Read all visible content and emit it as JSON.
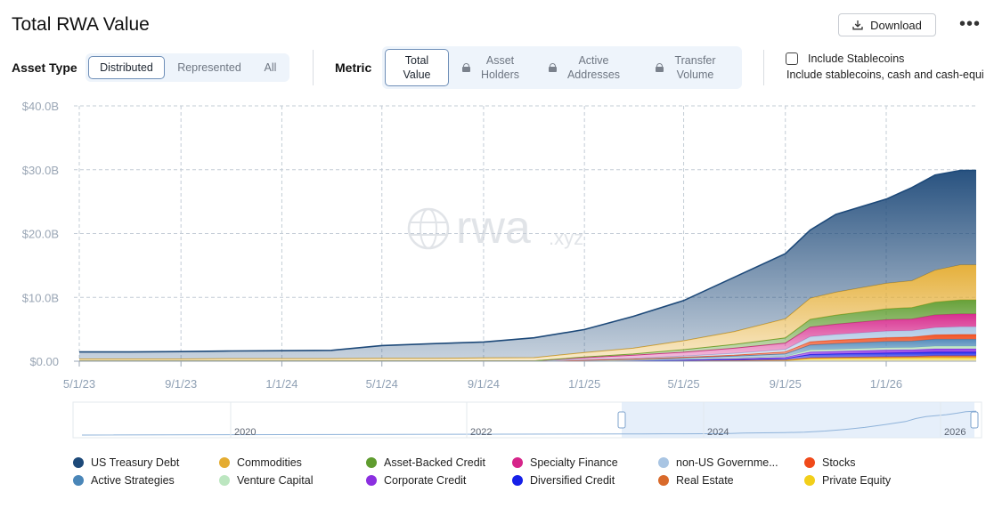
{
  "page": {
    "title": "Total RWA Value"
  },
  "toolbar": {
    "download_label": "Download",
    "more_label": "•••"
  },
  "asset_type": {
    "label": "Asset Type",
    "options": [
      "Distributed",
      "Represented",
      "All"
    ],
    "selected": "Distributed"
  },
  "metric": {
    "label": "Metric",
    "options": [
      {
        "line1": "Total",
        "line2": "Value",
        "locked": false,
        "active": true
      },
      {
        "line1": "Asset",
        "line2": "Holders",
        "locked": true,
        "active": false
      },
      {
        "line1": "Active",
        "line2": "Addresses",
        "locked": true,
        "active": false
      },
      {
        "line1": "Transfer",
        "line2": "Volume",
        "locked": true,
        "active": false
      }
    ]
  },
  "stablecoins": {
    "label": "Include Stablecoins",
    "sublabel": "Include stablecoins, cash and cash-equi",
    "checked": false
  },
  "watermark": {
    "text": "rwa",
    "suffix": ".xyz"
  },
  "navigator": {
    "year_labels": [
      "2020",
      "2022",
      "2024",
      "2026"
    ]
  },
  "chart_data": {
    "type": "area",
    "title": "Total RWA Value",
    "xlabel": "",
    "ylabel": "",
    "stacked": true,
    "x_ticks": [
      "5/1/23",
      "9/1/23",
      "1/1/24",
      "5/1/24",
      "9/1/24",
      "1/1/25",
      "5/1/25",
      "9/1/25",
      "1/1/26"
    ],
    "y_ticks": [
      "$0.00",
      "$10.0B",
      "$20.0B",
      "$30.0B",
      "$40.0B"
    ],
    "ylim": [
      0,
      40
    ],
    "y_unit": "B USD",
    "grid": true,
    "x": [
      "5/1/23",
      "7/1/23",
      "9/1/23",
      "11/1/23",
      "1/1/24",
      "3/1/24",
      "5/1/24",
      "7/1/24",
      "9/1/24",
      "11/1/24",
      "1/1/25",
      "3/1/25",
      "5/1/25",
      "7/1/25",
      "9/1/25",
      "10/1/25",
      "11/1/25",
      "1/1/26",
      "2/1/26",
      "3/1/26",
      "4/1/26"
    ],
    "series": [
      {
        "name": "Private Equity",
        "color": "#f2cf1a",
        "values": [
          0,
          0,
          0,
          0,
          0,
          0,
          0,
          0,
          0,
          0,
          0,
          0.02,
          0.03,
          0.05,
          0.1,
          0.4,
          0.45,
          0.5,
          0.55,
          0.6,
          0.6
        ]
      },
      {
        "name": "Real Estate",
        "color": "#d96a2b",
        "values": [
          0.05,
          0.05,
          0.05,
          0.05,
          0.05,
          0.05,
          0.05,
          0.05,
          0.06,
          0.06,
          0.06,
          0.07,
          0.08,
          0.09,
          0.1,
          0.15,
          0.15,
          0.2,
          0.2,
          0.25,
          0.25
        ]
      },
      {
        "name": "Diversified Credit",
        "color": "#1620e8",
        "values": [
          0,
          0,
          0,
          0,
          0,
          0,
          0,
          0,
          0,
          0,
          0,
          0.02,
          0.05,
          0.1,
          0.2,
          0.5,
          0.55,
          0.6,
          0.6,
          0.6,
          0.6
        ]
      },
      {
        "name": "Corporate Credit",
        "color": "#8b2fe0",
        "values": [
          0,
          0,
          0,
          0,
          0,
          0,
          0,
          0,
          0,
          0,
          0.02,
          0.05,
          0.1,
          0.15,
          0.2,
          0.4,
          0.4,
          0.45,
          0.45,
          0.5,
          0.5
        ]
      },
      {
        "name": "Venture Capital",
        "color": "#bce6c0",
        "values": [
          0,
          0,
          0,
          0,
          0,
          0,
          0,
          0,
          0,
          0,
          0.01,
          0.02,
          0.05,
          0.1,
          0.15,
          0.3,
          0.3,
          0.35,
          0.35,
          0.4,
          0.4
        ]
      },
      {
        "name": "Active Strategies",
        "color": "#4a86b8",
        "values": [
          0,
          0,
          0,
          0,
          0,
          0,
          0,
          0,
          0,
          0,
          0.05,
          0.1,
          0.2,
          0.3,
          0.4,
          0.8,
          0.9,
          1.0,
          1.0,
          1.1,
          1.1
        ]
      },
      {
        "name": "Stocks",
        "color": "#f04a1a",
        "values": [
          0,
          0,
          0,
          0,
          0,
          0,
          0,
          0,
          0,
          0,
          0.02,
          0.05,
          0.1,
          0.15,
          0.3,
          0.5,
          0.55,
          0.6,
          0.65,
          0.7,
          0.75
        ]
      },
      {
        "name": "non-US Government Debt",
        "color": "#a9c5e3",
        "values": [
          0,
          0,
          0,
          0,
          0,
          0,
          0,
          0,
          0,
          0,
          0.1,
          0.15,
          0.2,
          0.3,
          0.4,
          0.8,
          0.9,
          1.0,
          1.0,
          1.1,
          1.2
        ]
      },
      {
        "name": "Specialty Finance",
        "color": "#d6258a",
        "values": [
          0,
          0,
          0,
          0,
          0,
          0,
          0,
          0,
          0,
          0,
          0.3,
          0.45,
          0.6,
          0.8,
          1.0,
          1.5,
          1.6,
          1.8,
          1.8,
          2.0,
          2.0
        ]
      },
      {
        "name": "Asset-Backed Credit",
        "color": "#5f9c2f",
        "values": [
          0,
          0,
          0,
          0,
          0,
          0,
          0,
          0,
          0,
          0,
          0.1,
          0.2,
          0.4,
          0.6,
          0.8,
          1.2,
          1.4,
          1.7,
          1.8,
          2.0,
          2.2
        ]
      },
      {
        "name": "Commodities",
        "color": "#e4ac31",
        "values": [
          0.3,
          0.3,
          0.3,
          0.35,
          0.35,
          0.35,
          0.4,
          0.4,
          0.45,
          0.5,
          0.7,
          0.9,
          1.4,
          2.0,
          3.0,
          3.3,
          3.6,
          4.0,
          4.2,
          5.0,
          5.5
        ]
      },
      {
        "name": "US Treasury Debt",
        "color": "#1d4979",
        "values": [
          1.1,
          1.1,
          1.15,
          1.2,
          1.25,
          1.3,
          2.0,
          2.3,
          2.5,
          3.1,
          3.6,
          5.0,
          6.3,
          8.5,
          10.2,
          10.7,
          12.2,
          13.2,
          14.6,
          14.9,
          14.8
        ]
      }
    ]
  },
  "legend": {
    "items": [
      {
        "label": "US Treasury Debt",
        "color": "#1d4979"
      },
      {
        "label": "Commodities",
        "color": "#e4ac31"
      },
      {
        "label": "Asset-Backed Credit",
        "color": "#5f9c2f"
      },
      {
        "label": "Specialty Finance",
        "color": "#d6258a"
      },
      {
        "label": "non-US Governme...",
        "color": "#a9c5e3"
      },
      {
        "label": "Stocks",
        "color": "#f04a1a"
      },
      {
        "label": "Active Strategies",
        "color": "#4a86b8"
      },
      {
        "label": "Venture Capital",
        "color": "#bce6c0"
      },
      {
        "label": "Corporate Credit",
        "color": "#8b2fe0"
      },
      {
        "label": "Diversified Credit",
        "color": "#1620e8"
      },
      {
        "label": "Real Estate",
        "color": "#d96a2b"
      },
      {
        "label": "Private Equity",
        "color": "#f2cf1a"
      }
    ]
  }
}
